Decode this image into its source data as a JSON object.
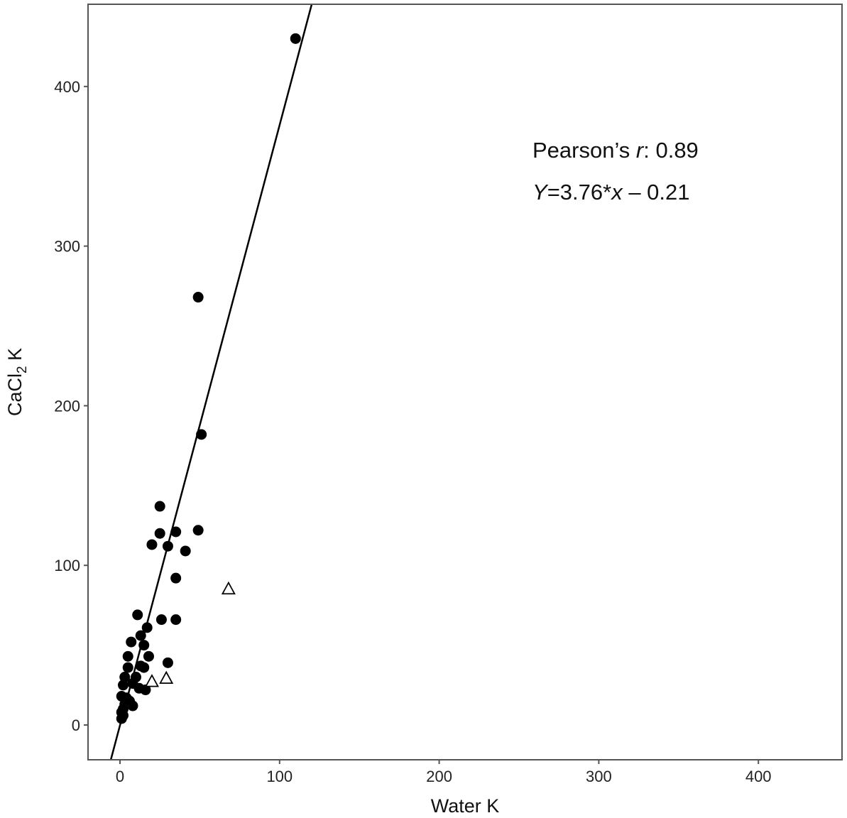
{
  "chart_data": {
    "type": "scatter",
    "title": "",
    "xlabel": "Water K",
    "ylabel_main": "CaCl",
    "ylabel_sub": "2",
    "ylabel_suffix": " K",
    "xlim": [
      -20,
      450
    ],
    "ylim": [
      -20,
      455
    ],
    "xticks": [
      0,
      100,
      200,
      300,
      400
    ],
    "yticks": [
      0,
      100,
      200,
      300,
      400
    ],
    "xtick_labels": [
      "0",
      "100",
      "200",
      "300",
      "400"
    ],
    "ytick_labels": [
      "0",
      "100",
      "200",
      "300",
      "400"
    ],
    "grid": false,
    "series": [
      {
        "marker": "filled-circle",
        "points": [
          [
            110,
            430
          ],
          [
            49,
            268
          ],
          [
            51,
            182
          ],
          [
            25,
            137
          ],
          [
            25,
            120
          ],
          [
            35,
            121
          ],
          [
            49,
            122
          ],
          [
            20,
            113
          ],
          [
            30,
            112
          ],
          [
            41,
            109
          ],
          [
            35,
            92
          ],
          [
            11,
            69
          ],
          [
            26,
            66
          ],
          [
            35,
            66
          ],
          [
            17,
            61
          ],
          [
            13,
            56
          ],
          [
            7,
            52
          ],
          [
            15,
            50
          ],
          [
            5,
            43
          ],
          [
            18,
            43
          ],
          [
            30,
            39
          ],
          [
            13,
            37
          ],
          [
            5,
            36
          ],
          [
            15,
            36
          ],
          [
            3,
            30
          ],
          [
            10,
            30
          ],
          [
            8,
            26
          ],
          [
            2,
            25
          ],
          [
            12,
            23
          ],
          [
            16,
            22
          ],
          [
            1,
            18
          ],
          [
            4,
            17
          ],
          [
            6,
            15
          ],
          [
            3,
            13
          ],
          [
            8,
            12
          ],
          [
            2,
            10
          ],
          [
            1,
            8
          ],
          [
            2,
            6
          ],
          [
            1,
            4
          ]
        ]
      },
      {
        "marker": "open-triangle",
        "points": [
          [
            68,
            85
          ],
          [
            29,
            29
          ],
          [
            20,
            27
          ]
        ]
      }
    ],
    "fit_line": {
      "slope": 3.76,
      "intercept": -0.21
    },
    "annotations": {
      "line1_prefix": "Pearson’s ",
      "line1_italic": "r",
      "line1_suffix": ": 0.89",
      "line2_italic1": "Y",
      "line2_mid": "=3.76*",
      "line2_italic2": "x",
      "line2_suffix": " – 0.21"
    },
    "colors": {
      "points": "#000000",
      "panel_border": "#555555",
      "fit_line": "#000000"
    }
  }
}
